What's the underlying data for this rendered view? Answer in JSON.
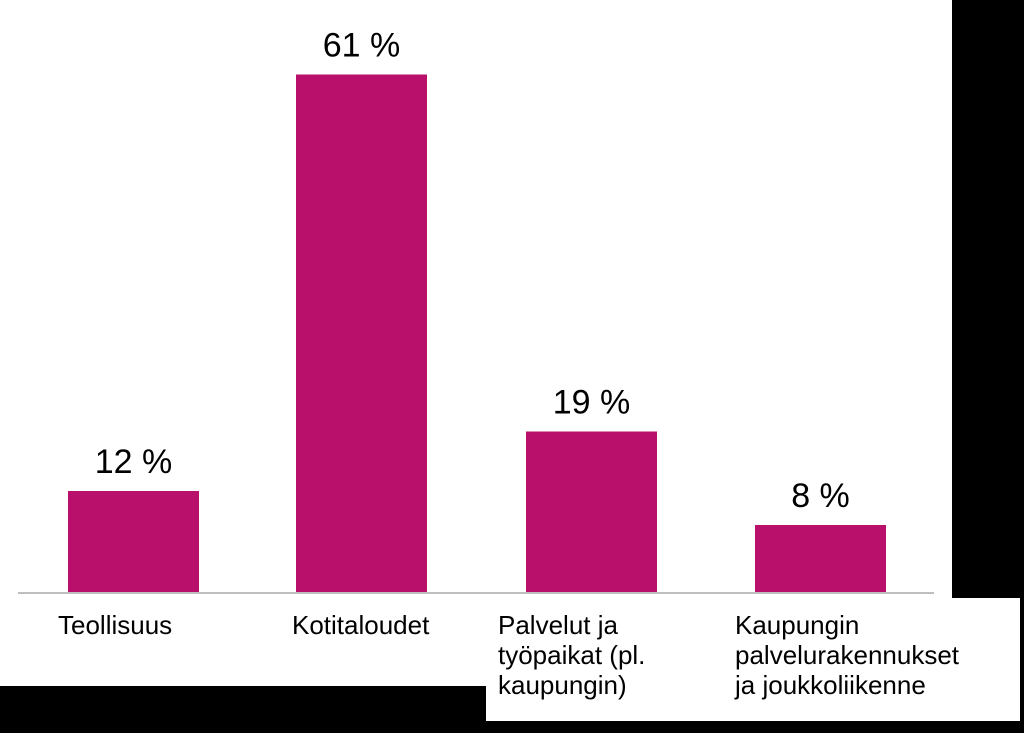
{
  "chart_data": {
    "type": "bar",
    "categories": [
      "Teollisuus",
      "Kotitaloudet",
      "Palvelut ja työpaikat (pl. kaupungin)",
      "Kaupungin palvelurakennukset ja joukkoliikenne"
    ],
    "category_label_lines": [
      [
        "Teollisuus"
      ],
      [
        "Kotitaloudet"
      ],
      [
        "Palvelut ja",
        "työpaikat (pl.",
        "kaupungin)"
      ],
      [
        "Kaupungin",
        "palvelurakennukset",
        "ja joukkoliikenne"
      ]
    ],
    "values": [
      12,
      61,
      19,
      8
    ],
    "data_labels": [
      "12 %",
      "61 %",
      "19 %",
      "8 %"
    ],
    "ylim": [
      0,
      65
    ],
    "grid": false,
    "legend": "none",
    "bar_color": "#B8106B",
    "axis_color": "#BFBFBF"
  }
}
